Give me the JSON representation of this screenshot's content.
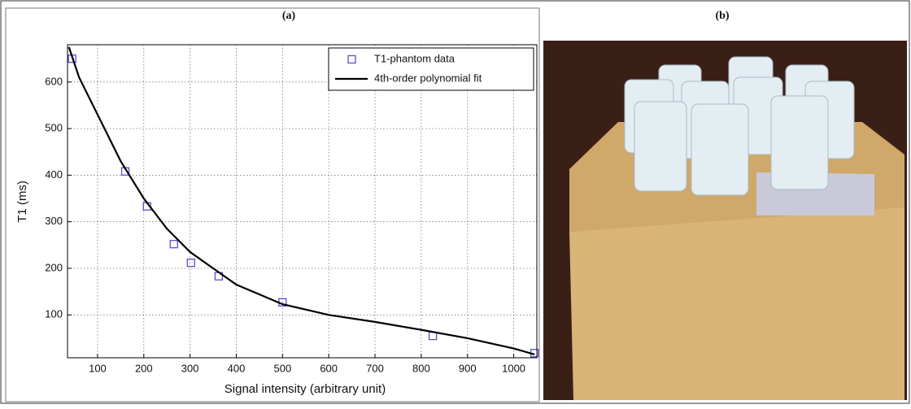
{
  "chart_data": {
    "type": "scatter",
    "title": "(a)",
    "x_label": "Signal intensity (arbitrary unit)",
    "y_label": "T1 (ms)",
    "xlim": [
      35,
      1050
    ],
    "ylim": [
      8,
      680
    ],
    "xticks": [
      100,
      200,
      300,
      400,
      500,
      600,
      700,
      800,
      900,
      1000
    ],
    "yticks": [
      100,
      200,
      300,
      400,
      500,
      600
    ],
    "grid": true,
    "legend": "upper right",
    "series": [
      {
        "name": "T1-phantom data",
        "type": "scatter",
        "color": "#5a4fd0",
        "x": [
          45,
          160,
          207,
          265,
          302,
          362,
          500,
          825,
          1045
        ],
        "values": [
          650,
          408,
          333,
          252,
          212,
          183,
          127,
          55,
          18
        ]
      },
      {
        "name": "4th-order polynomial fit",
        "type": "line",
        "color": "#000000",
        "x": [
          38,
          60,
          100,
          150,
          200,
          250,
          300,
          400,
          500,
          600,
          700,
          800,
          900,
          1000,
          1045
        ],
        "values": [
          675,
          610,
          530,
          430,
          350,
          285,
          235,
          165,
          123,
          100,
          85,
          68,
          50,
          28,
          15
        ]
      }
    ]
  },
  "panel_b": {
    "title": "(b)"
  }
}
